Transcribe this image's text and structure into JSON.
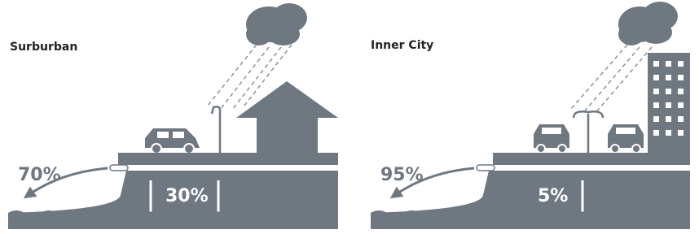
{
  "panels": [
    {
      "title": "Surburban",
      "runoff": "70%",
      "infiltration": "30%"
    },
    {
      "title": "Inner City",
      "runoff": "95%",
      "infiltration": "5%"
    }
  ]
}
